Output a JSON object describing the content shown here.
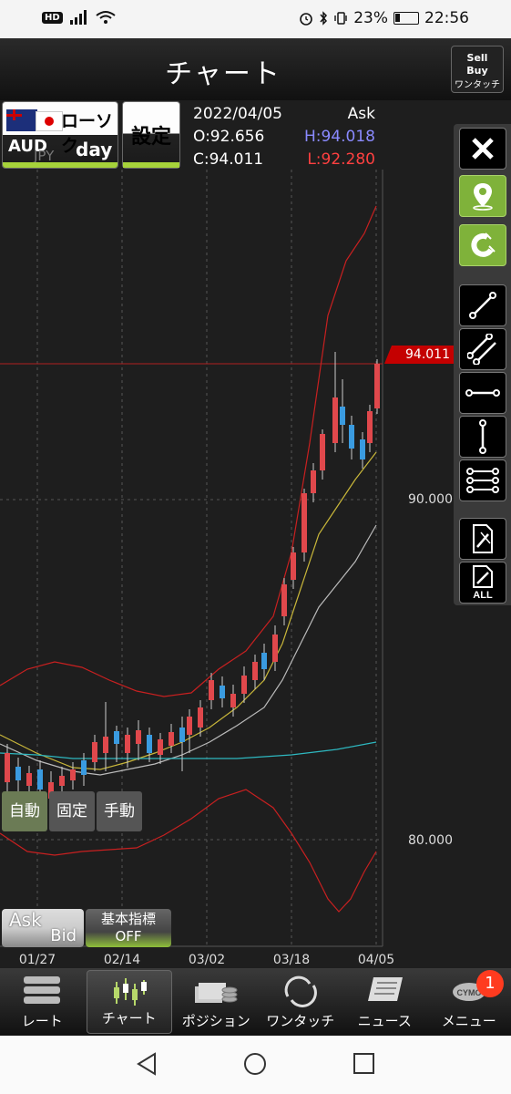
{
  "status_bar": {
    "hd": "HD",
    "battery": "23%",
    "time": "22:56"
  },
  "header": {
    "title": "チャート",
    "onetouch_label": "ワンタッチ",
    "onetouch_sell": "Sell",
    "onetouch_buy": "Buy"
  },
  "pair": {
    "chart_type": "ローソク",
    "base": "AUD",
    "quote": "JPY",
    "timeframe": "day"
  },
  "settings_label": "設定",
  "ohlc": {
    "date": "2022/04/05",
    "side": "Ask",
    "open": "O:92.656",
    "high": "H:94.018",
    "close": "C:94.011",
    "low": "L:92.280"
  },
  "price_tag": "94.011",
  "chart_data": {
    "type": "candlestick",
    "y_ticks": [
      "90.000",
      "80.000"
    ],
    "x_ticks": [
      "01/27",
      "02/14",
      "03/02",
      "03/18",
      "04/05"
    ],
    "colors": {
      "up": "#e0484c",
      "down": "#3a9be0",
      "bollinger": "#c82020",
      "ma_short": "#c9b73a",
      "ma_mid": "#bbbbbb",
      "ma_long": "#2eb8c0"
    }
  },
  "modes": {
    "auto": "自動",
    "fixed": "固定",
    "manual": "手動"
  },
  "askbid": {
    "ask": "Ask",
    "bid": "Bid"
  },
  "indicator": {
    "line1": "基本指標",
    "line2": "OFF"
  },
  "toolbar": {
    "all_label": "ALL"
  },
  "nav": [
    {
      "label": "レート",
      "icon": "rate-icon"
    },
    {
      "label": "チャート",
      "icon": "chart-icon"
    },
    {
      "label": "ポジション",
      "icon": "position-icon"
    },
    {
      "label": "ワンタッチ",
      "icon": "onetouch-icon"
    },
    {
      "label": "ニュース",
      "icon": "news-icon"
    },
    {
      "label": "メニュー",
      "icon": "menu-icon"
    }
  ],
  "badge": "1",
  "cymo": "CYMO"
}
